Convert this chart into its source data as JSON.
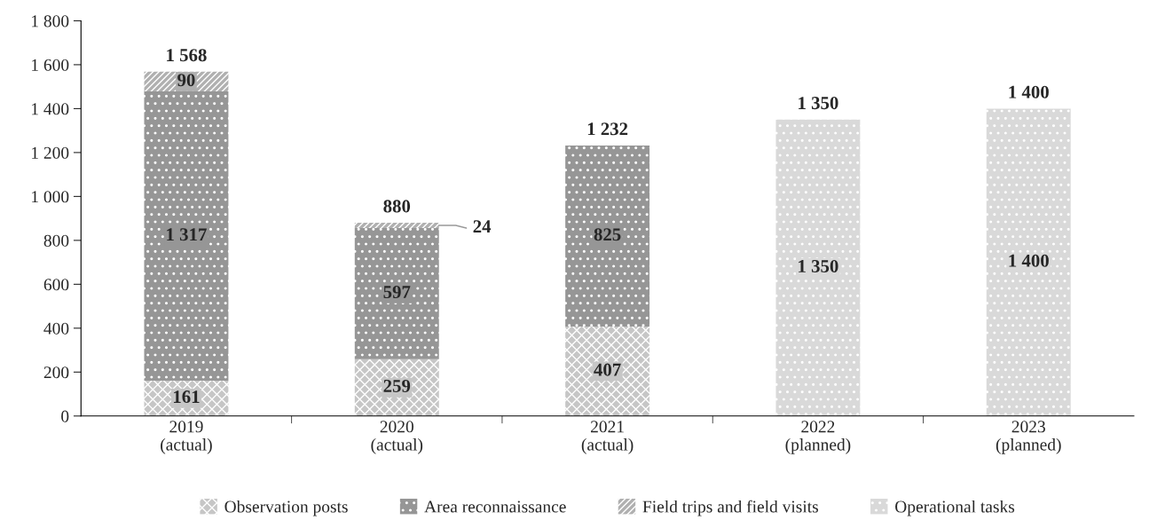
{
  "chart_data": {
    "type": "bar",
    "stacked": true,
    "categories": [
      "2019\n(actual)",
      "2020\n(actual)",
      "2021\n(actual)",
      "2022\n(planned)",
      "2023\n(planned)"
    ],
    "series": [
      {
        "name": "Observation posts",
        "color": "#c6c6c6",
        "values": [
          161,
          259,
          407,
          null,
          null
        ],
        "value_labels": [
          "161",
          "259",
          "407",
          null,
          null
        ]
      },
      {
        "name": "Area reconnaissance",
        "color": "#969696",
        "values": [
          1317,
          597,
          825,
          null,
          null
        ],
        "value_labels": [
          "1 317",
          "597",
          "825",
          null,
          null
        ]
      },
      {
        "name": "Field trips and field visits",
        "color": "#b0b0b0",
        "values": [
          90,
          24,
          null,
          null,
          null
        ],
        "value_labels": [
          "90",
          "24",
          null,
          null,
          null
        ]
      },
      {
        "name": "Operational tasks",
        "color": "#d9d9d9",
        "values": [
          null,
          null,
          null,
          1350,
          1400
        ],
        "value_labels": [
          null,
          null,
          null,
          "1 350",
          "1 400"
        ]
      }
    ],
    "totals": [
      "1 568",
      "880",
      "1 232",
      "1 350",
      "1 400"
    ],
    "ylim": [
      0,
      1800
    ],
    "yticks": [
      0,
      200,
      400,
      600,
      800,
      {
        "value": 1000,
        "label": "1 000"
      },
      {
        "value": 1200,
        "label": "1 200"
      },
      {
        "value": 1400,
        "label": "1 400"
      },
      {
        "value": 1600,
        "label": "1 600"
      },
      {
        "value": 1800,
        "label": "1 800"
      }
    ],
    "grid": false,
    "legend": "bottom"
  }
}
